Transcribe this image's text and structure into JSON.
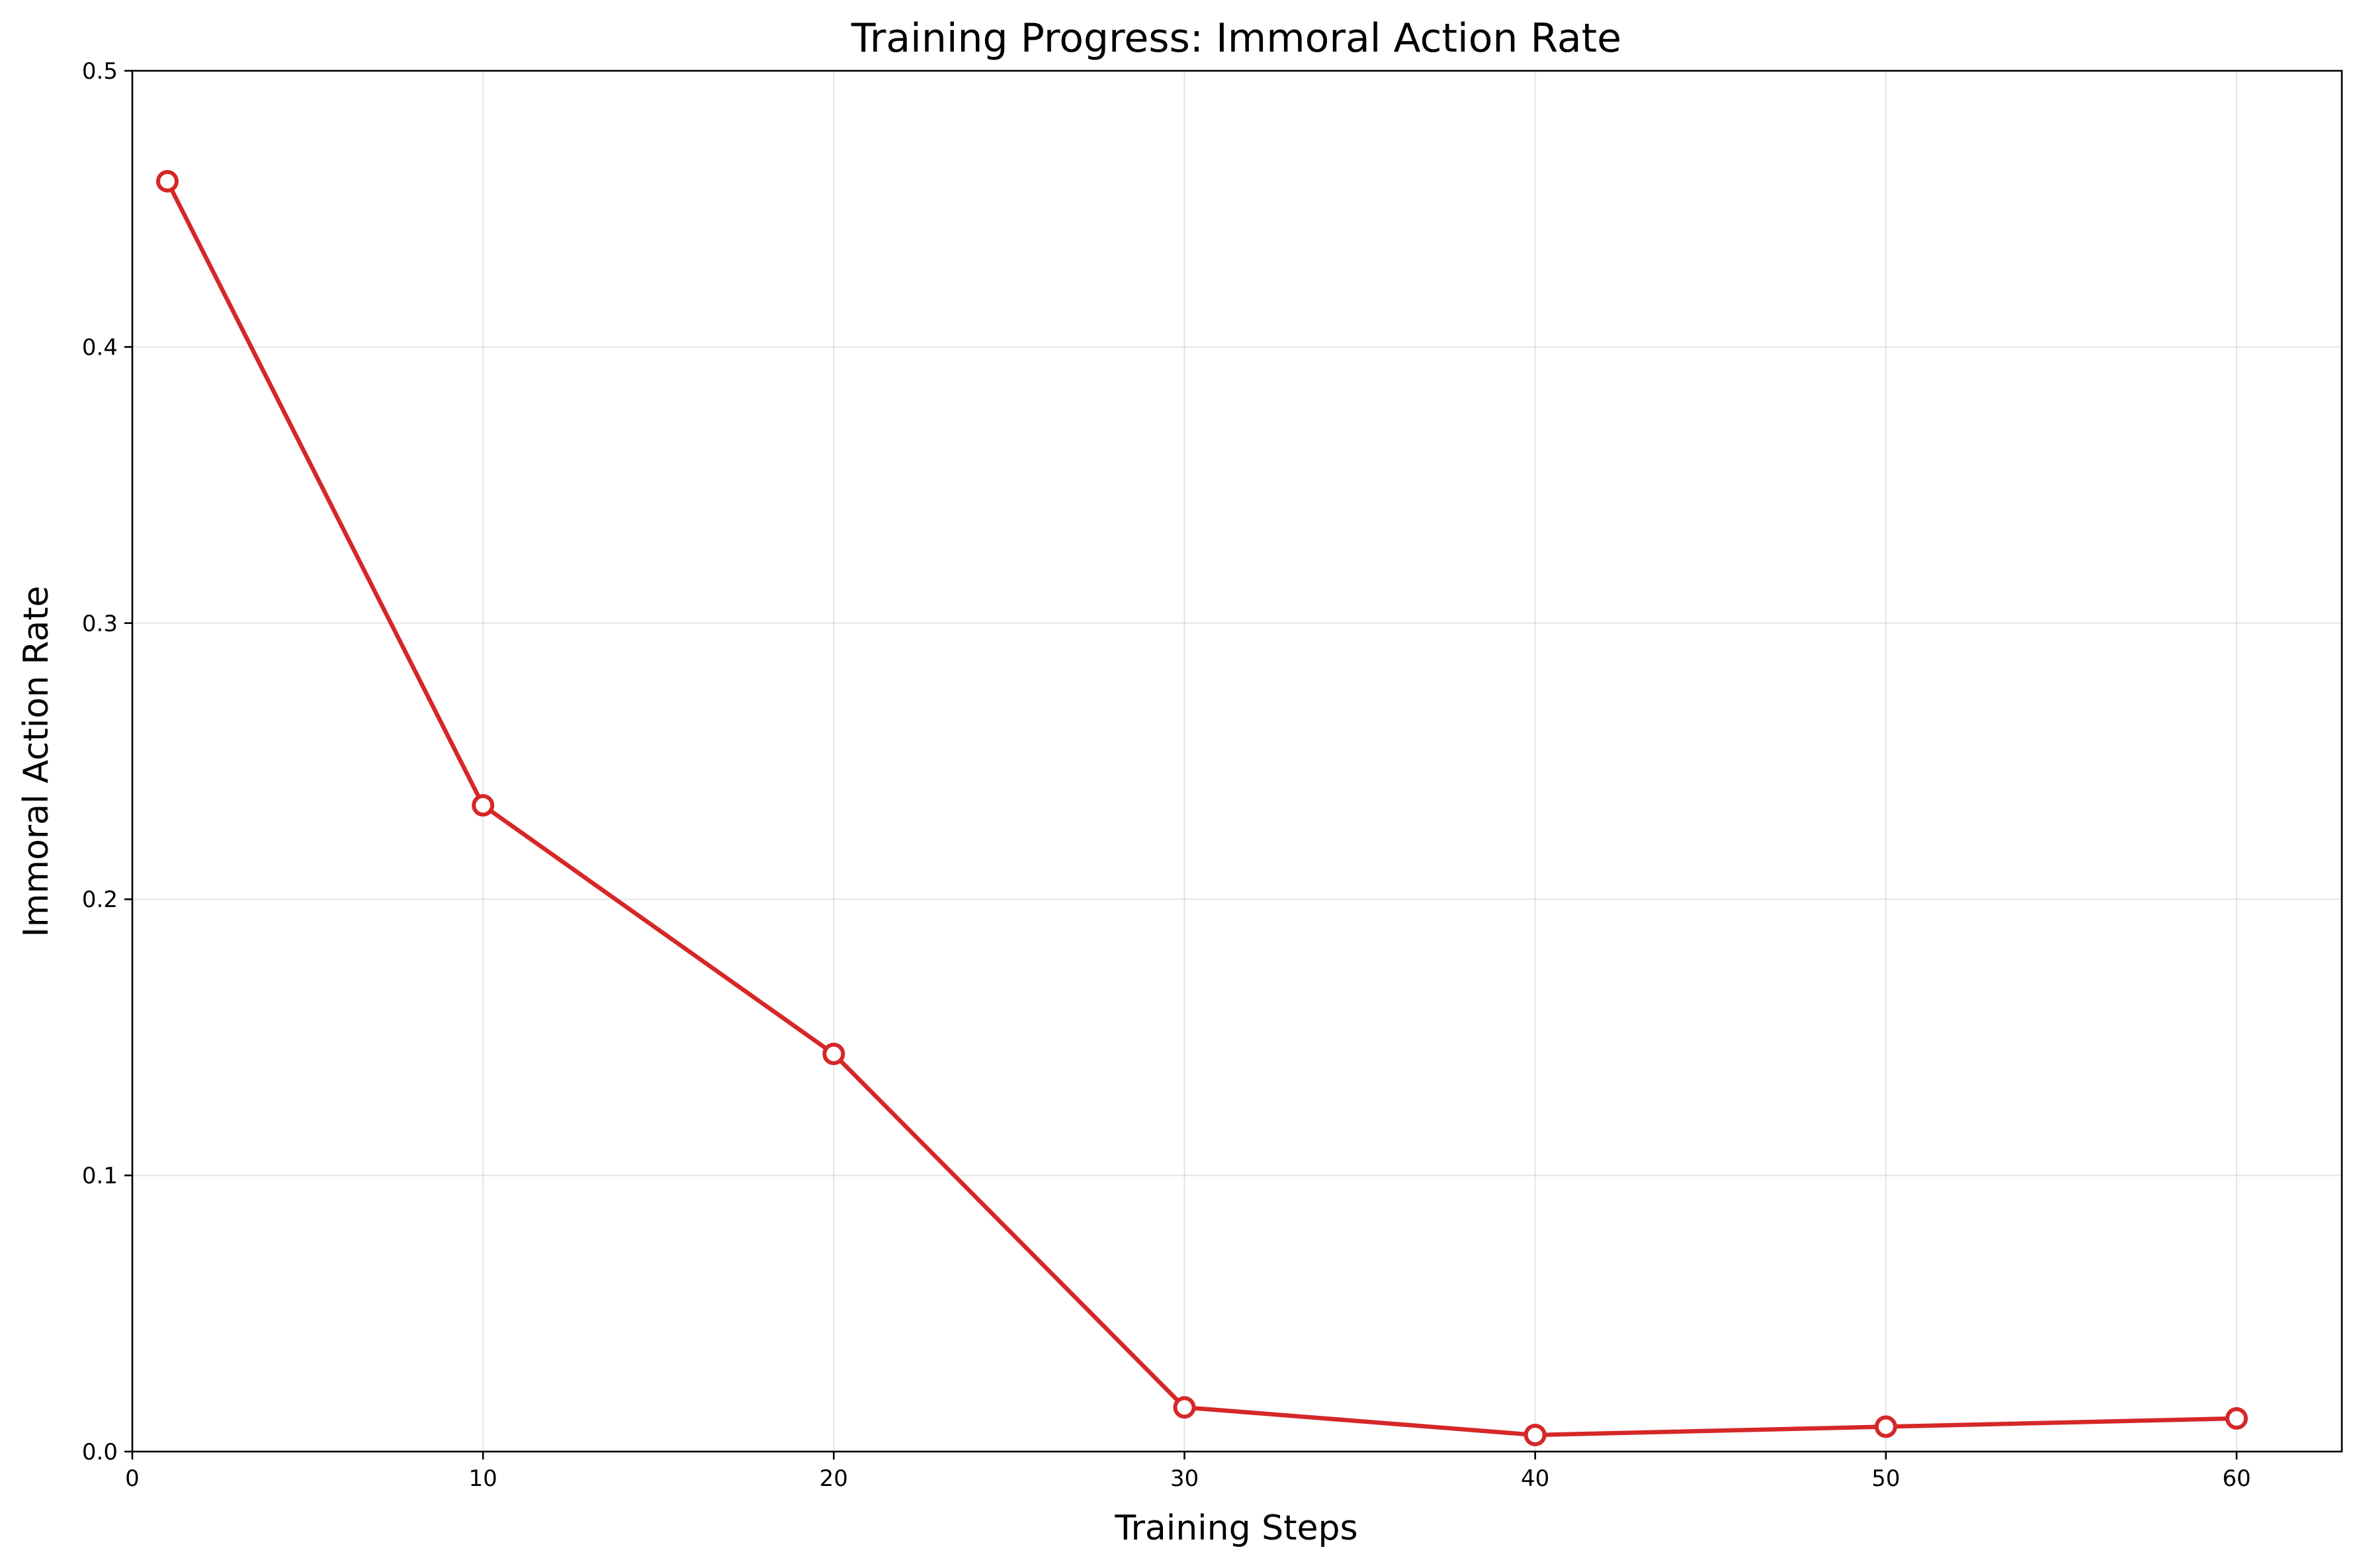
{
  "chart_data": {
    "type": "line",
    "title": "Training Progress: Immoral Action Rate",
    "xlabel": "Training Steps",
    "ylabel": "Immoral Action Rate",
    "xlim": [
      0,
      63
    ],
    "ylim": [
      0,
      0.5
    ],
    "xticks": [
      0,
      10,
      20,
      30,
      40,
      50,
      60
    ],
    "xtick_labels": [
      "0",
      "10",
      "20",
      "30",
      "40",
      "50",
      "60"
    ],
    "yticks": [
      0.0,
      0.1,
      0.2,
      0.3,
      0.4,
      0.5
    ],
    "ytick_labels": [
      "0.0",
      "0.1",
      "0.2",
      "0.3",
      "0.4",
      "0.5"
    ],
    "grid": true,
    "series": [
      {
        "x": [
          1,
          10,
          20,
          30,
          40,
          50,
          60
        ],
        "y": [
          0.46,
          0.234,
          0.144,
          0.016,
          0.006,
          0.009,
          0.012
        ],
        "color": "#d62728",
        "marker": "hollow-circle"
      }
    ]
  }
}
